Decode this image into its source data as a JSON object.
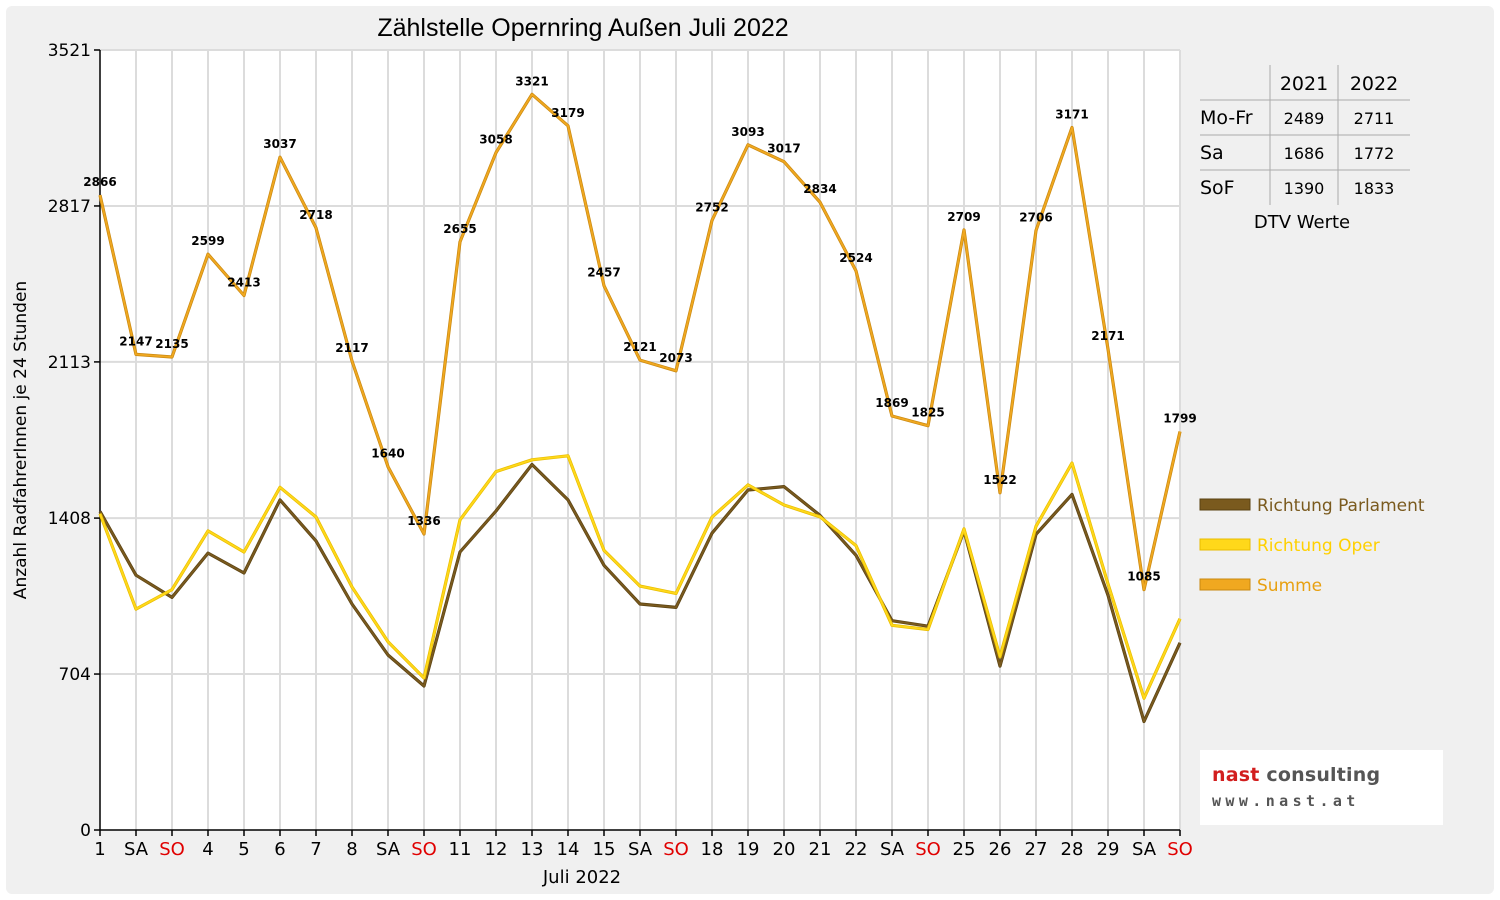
{
  "chart_data": {
    "type": "line",
    "title": "Zählstelle Opernring Außen Juli 2022",
    "xlabel": "Juli 2022",
    "ylabel": "Anzahl RadfahrerInnen je 24 Stunden",
    "ylim": [
      0,
      3521
    ],
    "yticks": [
      0,
      704,
      1408,
      2113,
      2817,
      3521
    ],
    "grid": true,
    "legend_placement": "right",
    "x": [
      "1",
      "SA",
      "SO",
      "4",
      "5",
      "6",
      "7",
      "8",
      "SA",
      "SO",
      "11",
      "12",
      "13",
      "14",
      "15",
      "SA",
      "SO",
      "18",
      "19",
      "20",
      "21",
      "22",
      "SA",
      "SO",
      "25",
      "26",
      "27",
      "28",
      "29",
      "SA",
      "SO"
    ],
    "x_colors": [
      "#000000",
      "#000000",
      "#e00000",
      "#000000",
      "#000000",
      "#000000",
      "#000000",
      "#000000",
      "#000000",
      "#e00000",
      "#000000",
      "#000000",
      "#000000",
      "#000000",
      "#000000",
      "#000000",
      "#e00000",
      "#000000",
      "#000000",
      "#000000",
      "#000000",
      "#000000",
      "#000000",
      "#e00000",
      "#000000",
      "#000000",
      "#000000",
      "#000000",
      "#000000",
      "#000000",
      "#e00000"
    ],
    "series": [
      {
        "name": "Richtung Parlament",
        "color": "#7a5a1e",
        "values": [
          1438,
          1150,
          1050,
          1250,
          1160,
          1490,
          1305,
          1020,
          790,
          650,
          1255,
          1440,
          1650,
          1490,
          1195,
          1020,
          1005,
          1340,
          1535,
          1550,
          1420,
          1240,
          945,
          920,
          1350,
          740,
          1335,
          1515,
          1060,
          490,
          845
        ]
      },
      {
        "name": "Richtung Oper",
        "color": "#ffd81a",
        "values": [
          1428,
          997,
          1085,
          1350,
          1255,
          1547,
          1413,
          1097,
          850,
          686,
          1400,
          1618,
          1671,
          1689,
          1262,
          1101,
          1068,
          1412,
          1558,
          1467,
          1414,
          1284,
          924,
          905,
          1359,
          782,
          1371,
          1656,
          1111,
          595,
          954
        ]
      },
      {
        "name": "Summe",
        "color": "#f0a820",
        "values": [
          2866,
          2147,
          2135,
          2599,
          2413,
          3037,
          2718,
          2117,
          1640,
          1336,
          2655,
          3058,
          3321,
          3179,
          2457,
          2121,
          2073,
          2752,
          3093,
          3017,
          2834,
          2524,
          1869,
          1825,
          2709,
          1522,
          2706,
          3171,
          2171,
          1085,
          1799
        ]
      }
    ],
    "data_labels": [
      "2866",
      "2147",
      "2135",
      "2599",
      "2413",
      "3037",
      "2718",
      "2117",
      "1640",
      "1336",
      "2655",
      "3058",
      "3321",
      "3179",
      "2457",
      "2121",
      "2073",
      "2752",
      "3093",
      "3017",
      "2834",
      "2524",
      "1869",
      "1825",
      "2709",
      "1522",
      "2706",
      "3171",
      "2171",
      "1085",
      "1799"
    ],
    "dtv_table": {
      "columns": [
        "",
        "2021",
        "2022"
      ],
      "rows": [
        {
          "label": "Mo-Fr",
          "v2021": "2489",
          "v2022": "2711"
        },
        {
          "label": "Sa",
          "v2021": "1686",
          "v2022": "1772"
        },
        {
          "label": "SoF",
          "v2021": "1390",
          "v2022": "1833"
        }
      ],
      "caption": "DTV Werte"
    }
  },
  "logo": {
    "word1": "nast",
    "word2": "consulting",
    "web": "www.nast.at"
  }
}
